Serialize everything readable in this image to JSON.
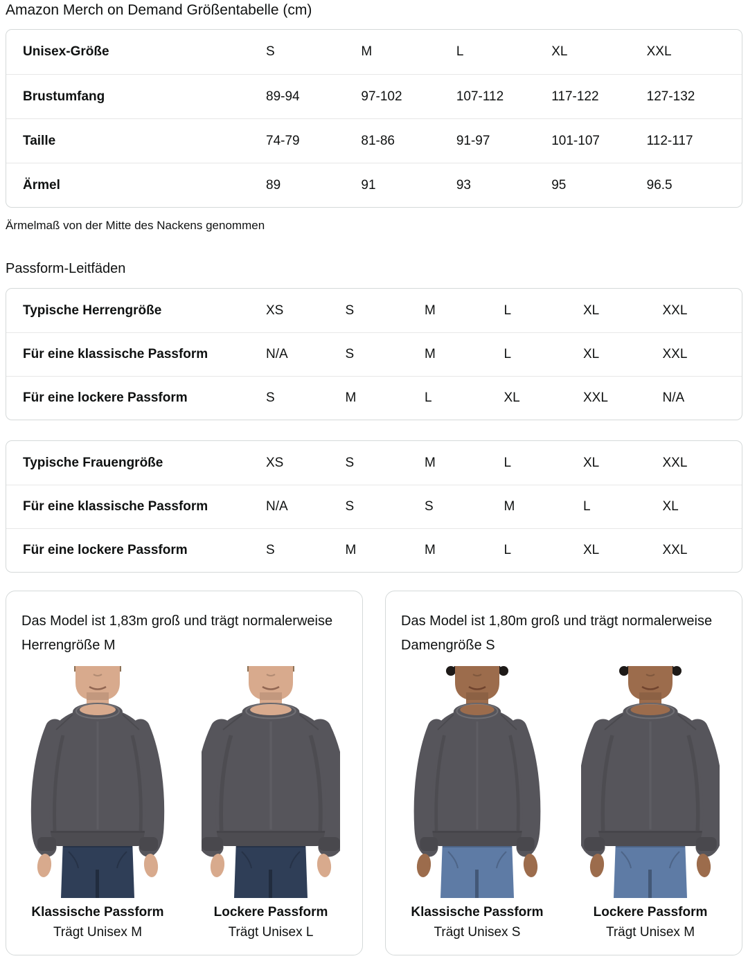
{
  "page": {
    "title": "Amazon Merch on Demand Größentabelle (cm)",
    "note": "Ärmelmaß von der Mitte des Nackens genommen",
    "section_heading": "Passform-Leitfäden"
  },
  "size_table": {
    "header_label": "Unisex-Größe",
    "header_sizes": [
      "S",
      "M",
      "L",
      "XL",
      "XXL"
    ],
    "rows": [
      {
        "label": "Brustumfang",
        "values": [
          "89-94",
          "97-102",
          "107-112",
          "117-122",
          "127-132"
        ]
      },
      {
        "label": "Taille",
        "values": [
          "74-79",
          "81-86",
          "91-97",
          "101-107",
          "112-117"
        ]
      },
      {
        "label": "Ärmel",
        "values": [
          "89",
          "91",
          "93",
          "95",
          "96.5"
        ]
      }
    ]
  },
  "fit_tables": [
    {
      "rows": [
        {
          "label": "Typische Herrengröße",
          "values": [
            "XS",
            "S",
            "M",
            "L",
            "XL",
            "XXL"
          ]
        },
        {
          "label": "Für eine klassische Passform",
          "values": [
            "N/A",
            "S",
            "M",
            "L",
            "XL",
            "XXL"
          ]
        },
        {
          "label": "Für eine lockere Passform",
          "values": [
            "S",
            "M",
            "L",
            "XL",
            "XXL",
            "N/A"
          ]
        }
      ]
    },
    {
      "rows": [
        {
          "label": "Typische Frauengröße",
          "values": [
            "XS",
            "S",
            "M",
            "L",
            "XL",
            "XXL"
          ]
        },
        {
          "label": "Für eine klassische Passform",
          "values": [
            "N/A",
            "S",
            "S",
            "M",
            "L",
            "XL"
          ]
        },
        {
          "label": "Für eine lockere Passform",
          "values": [
            "S",
            "M",
            "M",
            "L",
            "XL",
            "XXL"
          ]
        }
      ]
    }
  ],
  "model_cards": [
    {
      "description": "Das Model ist 1,83m groß und trägt normalerweise Herrengröße M",
      "figures": [
        {
          "caption": "Klassische Passform",
          "sub": "Trägt Unisex M"
        },
        {
          "caption": "Lockere Passform",
          "sub": "Trägt Unisex L"
        }
      ]
    },
    {
      "description": "Das Model ist 1,80m groß und trägt normalerweise Damengröße S",
      "figures": [
        {
          "caption": "Klassische Passform",
          "sub": "Trägt Unisex S"
        },
        {
          "caption": "Lockere Passform",
          "sub": "Trägt Unisex M"
        }
      ]
    }
  ],
  "colors": {
    "text": "#0F1111",
    "border": "#D5D9D9",
    "divider": "#E7E7E7",
    "sweatshirt": "#56555B",
    "jeans_dark": "#2F3E57",
    "jeans_light": "#5E7BA5",
    "skin_male": "#D8AA8D",
    "skin_female": "#9C6C4C",
    "hair_male": "#8C7257",
    "hair_female": "#1E1A18"
  }
}
